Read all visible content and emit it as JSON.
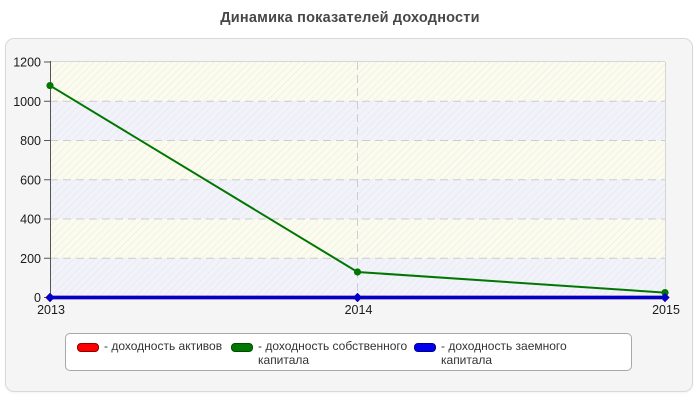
{
  "title": "Динамика показателей доходности",
  "legend": {
    "items": [
      {
        "label": "- доходность активов",
        "color": "#ff0000",
        "border": "#8b0000"
      },
      {
        "label": "- доходность собственного капитала",
        "color": "#007700",
        "border": "#004d00"
      },
      {
        "label": "- доходность заемного капитала",
        "color": "#0000ee",
        "border": "#00008b"
      }
    ]
  },
  "chart_data": {
    "type": "line",
    "title": "Динамика показателей доходности",
    "x": [
      "2013",
      "2014",
      "2015"
    ],
    "series": [
      {
        "name": "доходность активов",
        "color": "#dd0000",
        "marker": "diamond",
        "width": 3.5,
        "values": [
          0,
          0,
          0
        ]
      },
      {
        "name": "доходность собственного капитала",
        "color": "#007700",
        "marker": "circle",
        "width": 2,
        "values": [
          1080,
          130,
          25
        ]
      },
      {
        "name": "доходность заемного капитала",
        "color": "#0000cc",
        "marker": "diamond",
        "width": 3.5,
        "values": [
          0,
          0,
          0
        ]
      }
    ],
    "ylim": [
      0,
      1200
    ],
    "yticks": [
      "0",
      "200",
      "400",
      "600",
      "800",
      "1000",
      "1200"
    ],
    "xlabel": "",
    "ylabel": "",
    "grid": "dashed",
    "legend_position": "bottom",
    "plot_colors": {
      "band_a": "#fbfbee",
      "band_b": "#f1f2fa",
      "hatch": "#dedede",
      "gridline": "#cdcdcd",
      "axis": "#555555",
      "tick_label": "#1a1a1a",
      "plot_border": "#d5d5d5"
    }
  }
}
